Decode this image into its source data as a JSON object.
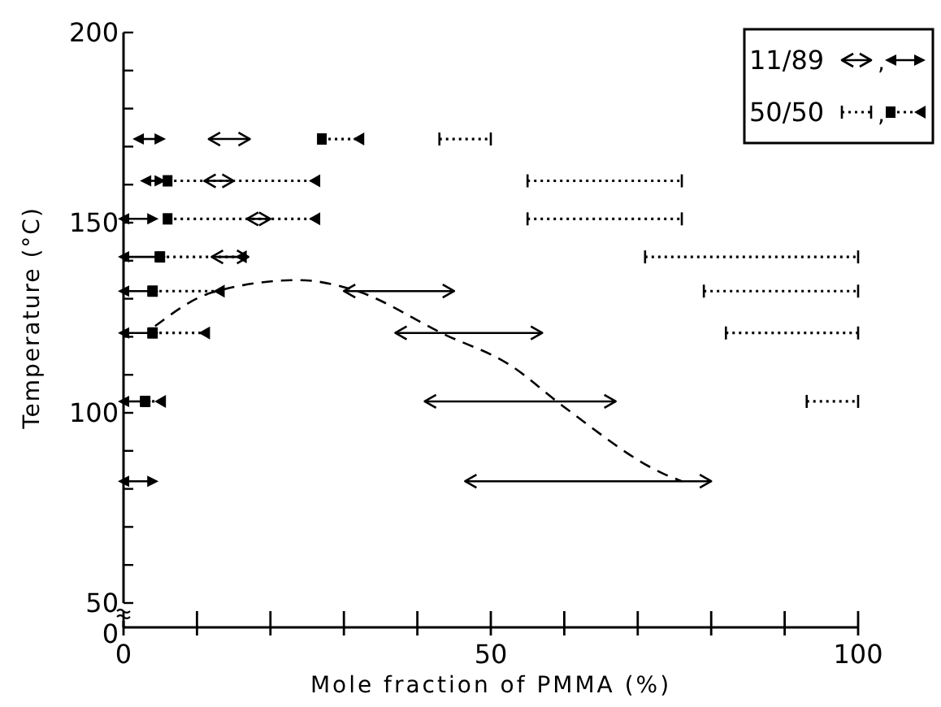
{
  "chart_data": {
    "type": "line",
    "xlabel": "Mole fraction of PMMA (%)",
    "ylabel": "Temperature (°C)",
    "annotations": [
      "0",
      ",",
      ","
    ],
    "xlim": [
      0,
      100
    ],
    "xticks": [
      0,
      {
        "value": 10,
        "label": null
      },
      {
        "value": 20,
        "label": null
      },
      {
        "value": 30,
        "label": null
      },
      {
        "value": 40,
        "label": null
      },
      50,
      {
        "value": 60,
        "label": null
      },
      {
        "value": 70,
        "label": null
      },
      {
        "value": 80,
        "label": null
      },
      {
        "value": 90,
        "label": null
      },
      100
    ],
    "ylim": [
      50,
      200
    ],
    "yticks": [
      50,
      {
        "value": 60,
        "label": null
      },
      {
        "value": 70,
        "label": null
      },
      {
        "value": 80,
        "label": null
      },
      {
        "value": 90,
        "label": null
      },
      100,
      {
        "value": 110,
        "label": null
      },
      {
        "value": 120,
        "label": null
      },
      {
        "value": 130,
        "label": null
      },
      {
        "value": 140,
        "label": null
      },
      150,
      {
        "value": 160,
        "label": null
      },
      {
        "value": 170,
        "label": null
      },
      {
        "value": 180,
        "label": null
      },
      {
        "value": 190,
        "label": null
      },
      200
    ],
    "legend": "top right",
    "series": [
      {
        "name": "11/89",
        "color": "#000000",
        "marker": "none",
        "line_style": "solid",
        "x": [
          11.6,
          17.2
        ],
        "values": [
          172,
          172
        ]
      },
      {
        "color": "#000000",
        "marker": "none",
        "line_style": "solid",
        "x": [
          11,
          15
        ],
        "values": [
          161,
          161
        ]
      },
      {
        "color": "#000000",
        "marker": "none",
        "line_style": "solid",
        "x": [
          16.8,
          20
        ],
        "values": [
          151,
          151
        ]
      },
      {
        "color": "#000000",
        "marker": "none",
        "line_style": "solid",
        "x": [
          12,
          17
        ],
        "values": [
          141,
          141
        ]
      },
      {
        "color": "#000000",
        "marker": "none",
        "line_style": "solid",
        "x": [
          30,
          45
        ],
        "values": [
          132,
          132
        ]
      },
      {
        "color": "#000000",
        "marker": "none",
        "line_style": "solid",
        "x": [
          37,
          57
        ],
        "values": [
          121,
          121
        ]
      },
      {
        "color": "#000000",
        "marker": "none",
        "line_style": "solid",
        "x": [
          41,
          67
        ],
        "values": [
          103,
          103
        ]
      },
      {
        "color": "#000000",
        "marker": "none",
        "line_style": "solid",
        "x": [
          46.5,
          80
        ],
        "values": [
          82,
          82
        ]
      },
      {
        "color": "#000000",
        "marker": "triangle",
        "line_style": "solid",
        "x": [
          2,
          5
        ],
        "values": [
          172,
          172
        ]
      },
      {
        "color": "#000000",
        "marker": "triangle",
        "line_style": "solid",
        "x": [
          3,
          5
        ],
        "values": [
          161,
          161
        ]
      },
      {
        "color": "#000000",
        "marker": "triangle",
        "line_style": "solid",
        "x": [
          0,
          4
        ],
        "values": [
          151,
          151
        ]
      },
      {
        "color": "#000000",
        "marker": "triangle",
        "line_style": "solid",
        "x": [
          0,
          5
        ],
        "values": [
          141,
          141
        ]
      },
      {
        "color": "#000000",
        "marker": "triangle",
        "line_style": "solid",
        "x": [
          0,
          4
        ],
        "values": [
          132,
          132
        ]
      },
      {
        "color": "#000000",
        "marker": "triangle",
        "line_style": "solid",
        "x": [
          0,
          4
        ],
        "values": [
          121,
          121
        ]
      },
      {
        "color": "#000000",
        "marker": "triangle",
        "line_style": "solid",
        "x": [
          0,
          3
        ],
        "values": [
          103,
          103
        ]
      },
      {
        "color": "#000000",
        "marker": "triangle",
        "line_style": "solid",
        "x": [
          0,
          4
        ],
        "values": [
          82,
          82
        ]
      },
      {
        "name": "50/50",
        "color": "#000000",
        "marker": "none",
        "line_style": "dotted",
        "x": [
          43,
          50
        ],
        "values": [
          172,
          172
        ]
      },
      {
        "color": "#000000",
        "marker": "none",
        "line_style": "dotted",
        "x": [
          55,
          76
        ],
        "values": [
          161,
          161
        ]
      },
      {
        "color": "#000000",
        "marker": "none",
        "line_style": "dotted",
        "x": [
          55,
          76
        ],
        "values": [
          151,
          151
        ]
      },
      {
        "color": "#000000",
        "marker": "none",
        "line_style": "dotted",
        "x": [
          71,
          100
        ],
        "values": [
          141,
          141
        ]
      },
      {
        "color": "#000000",
        "marker": "none",
        "line_style": "dotted",
        "x": [
          79,
          100
        ],
        "values": [
          132,
          132
        ]
      },
      {
        "color": "#000000",
        "marker": "none",
        "line_style": "dotted",
        "x": [
          82,
          100
        ],
        "values": [
          121,
          121
        ]
      },
      {
        "color": "#000000",
        "marker": "none",
        "line_style": "dotted",
        "x": [
          93,
          100
        ],
        "values": [
          103,
          103
        ]
      },
      {
        "color": "#000000",
        "marker": "square",
        "line_style": "dotted",
        "x": [
          27,
          32
        ],
        "values": [
          172,
          172
        ]
      },
      {
        "color": "#000000",
        "marker": "square",
        "line_style": "dotted",
        "x": [
          6,
          26
        ],
        "values": [
          161,
          161
        ]
      },
      {
        "color": "#000000",
        "marker": "square",
        "line_style": "dotted",
        "x": [
          6,
          26
        ],
        "values": [
          151,
          151
        ]
      },
      {
        "color": "#000000",
        "marker": "square",
        "line_style": "dotted",
        "x": [
          5,
          16
        ],
        "values": [
          141,
          141
        ]
      },
      {
        "color": "#000000",
        "marker": "square",
        "line_style": "dotted",
        "x": [
          4,
          13
        ],
        "values": [
          132,
          132
        ]
      },
      {
        "color": "#000000",
        "marker": "square",
        "line_style": "dotted",
        "x": [
          4,
          11
        ],
        "values": [
          121,
          121
        ]
      },
      {
        "color": "#000000",
        "marker": "square",
        "line_style": "dotted",
        "x": [
          3,
          5
        ],
        "values": [
          103,
          103
        ]
      },
      {
        "color": "#000000",
        "line_style": "dashed",
        "x": [
          4.3,
          12,
          23.8,
          31.2,
          43.7,
          52.5,
          60,
          73.6,
          76
        ],
        "values": [
          122.8,
          131.6,
          134.9,
          132.4,
          120.6,
          112.7,
          101.5,
          83.9,
          82
        ]
      }
    ]
  }
}
